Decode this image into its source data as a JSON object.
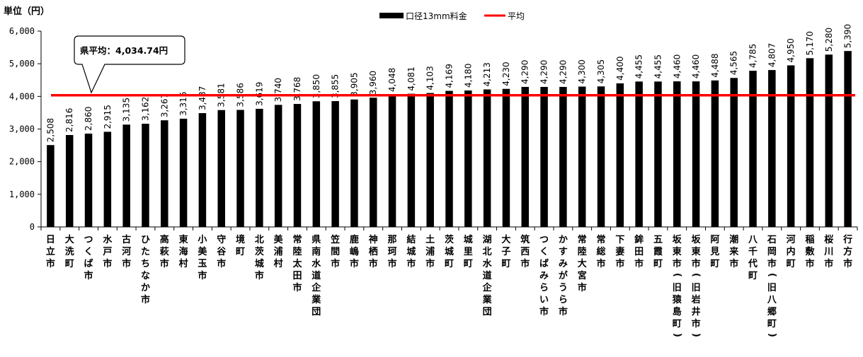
{
  "chart_data": {
    "type": "bar",
    "unit_label": "単位（円）",
    "categories": [
      "日立市",
      "大洗町",
      "つくば市",
      "水戸市",
      "古河市",
      "ひたちなか市",
      "高萩市",
      "東海村",
      "小美玉市",
      "守谷市",
      "境町",
      "北茨城市",
      "美浦村",
      "常陸太田市",
      "県南水道企業団",
      "笠間市",
      "鹿嶋市",
      "神栖市",
      "那珂市",
      "結城市",
      "土浦市",
      "茨城町",
      "城里町",
      "湖北水道企業団",
      "大子町",
      "筑西市",
      "つくばみらい市",
      "かすみがうら市",
      "常陸大宮市",
      "常総市",
      "下妻市",
      "鉾田市",
      "五霞町",
      "坂東市（旧猿島町）",
      "坂東市（旧岩井市）",
      "阿見町",
      "潮来市",
      "八千代町",
      "石岡市（旧八郷町）",
      "河内町",
      "稲敷市",
      "桜川市",
      "行方市"
    ],
    "series": [
      {
        "name": "口径13mm料金",
        "color": "#000000",
        "values": [
          2508,
          2816,
          2860,
          2915,
          3135,
          3162,
          3267,
          3316,
          3487,
          3581,
          3586,
          3619,
          3740,
          3768,
          3850,
          3855,
          3905,
          3960,
          4048,
          4081,
          4103,
          4169,
          4180,
          4213,
          4230,
          4290,
          4290,
          4290,
          4300,
          4305,
          4400,
          4455,
          4455,
          4460,
          4460,
          4488,
          4565,
          4785,
          4807,
          4950,
          5170,
          5280,
          5390
        ],
        "labels": [
          "2,508",
          "2,816",
          "2,860",
          "2,915",
          "3,135",
          "3,162",
          "3,267",
          "3,316",
          "3,487",
          "3,581",
          "3,586",
          "3,619",
          "3,740",
          "3,768",
          "3,850",
          "3,855",
          "3,905",
          "3,960",
          "4,048",
          "4,081",
          "4,103",
          "4,169",
          "4,180",
          "4,213",
          "4,230",
          "4,290",
          "4,290",
          "4,290",
          "4,300",
          "4,305",
          "4,400",
          "4,455",
          "4,455",
          "4,460",
          "4,460",
          "4,488",
          "4,565",
          "4,785",
          "4,807",
          "4,950",
          "5,170",
          "5,280",
          "5,390"
        ]
      }
    ],
    "average": {
      "name": "平均",
      "value": 4034.74,
      "color": "#ff0000"
    },
    "callout": "県平均：4,034.74円",
    "ylim": [
      0,
      6000
    ],
    "yticks": [
      0,
      1000,
      2000,
      3000,
      4000,
      5000,
      6000
    ],
    "ytick_labels": [
      "0",
      "1,000",
      "2,000",
      "3,000",
      "4,000",
      "5,000",
      "6,000"
    ],
    "legend_position": "top",
    "grid": false
  }
}
